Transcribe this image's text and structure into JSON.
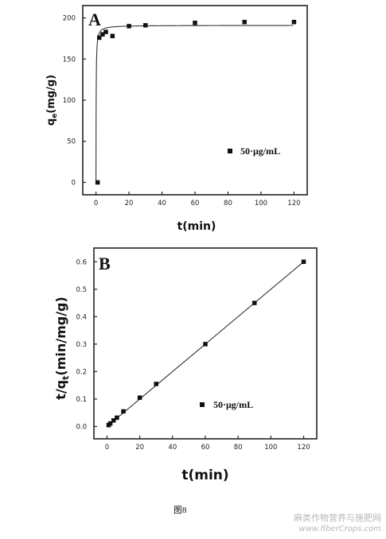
{
  "caption": "图8",
  "watermark": {
    "line1": "麻类作物营养与施肥网",
    "line2": "www.fiberCrops.com"
  },
  "chart_data": [
    {
      "type": "scatter",
      "panel": "A",
      "xlabel": "t(min)",
      "ylabel": "qe(mg/g)",
      "ylabel_main": "q",
      "ylabel_sub": "e",
      "ylabel_rest": "(mg/g)",
      "xlim": [
        -8,
        128
      ],
      "ylim": [
        -15,
        215
      ],
      "xticks": [
        0,
        20,
        40,
        60,
        80,
        100,
        120
      ],
      "yticks": [
        0,
        50,
        100,
        150,
        200
      ],
      "legend": "50·μg/mL",
      "legend_position": "lower-right",
      "series": [
        {
          "name": "50·μg/mL",
          "x": [
            1,
            2,
            4,
            6,
            10,
            20,
            30,
            60,
            90,
            120
          ],
          "y": [
            0,
            176,
            180,
            183,
            178,
            190,
            191,
            194,
            195,
            195
          ]
        }
      ],
      "fit": {
        "type": "pseudo-second-order curve",
        "qe": 191,
        "k": 0.05
      }
    },
    {
      "type": "scatter",
      "panel": "B",
      "xlabel": "t(min)",
      "ylabel": "t/qt(min/mg/g)",
      "ylabel_pre": "t/q",
      "ylabel_sub": "t",
      "ylabel_rest": "(min/mg/g)",
      "xlim": [
        -8,
        128
      ],
      "ylim": [
        -0.045,
        0.65
      ],
      "xticks": [
        0,
        20,
        40,
        60,
        80,
        100,
        120
      ],
      "yticks": [
        0.0,
        0.1,
        0.2,
        0.3,
        0.4,
        0.5,
        0.6
      ],
      "legend": "50·μg/mL",
      "legend_position": "lower-right",
      "series": [
        {
          "name": "50·μg/mL",
          "x": [
            1,
            2,
            4,
            6,
            10,
            20,
            30,
            60,
            90,
            120
          ],
          "y": [
            0.005,
            0.011,
            0.022,
            0.032,
            0.055,
            0.105,
            0.155,
            0.3,
            0.45,
            0.6
          ]
        }
      ],
      "fit": {
        "type": "linear",
        "x": [
          1,
          120
        ],
        "y": [
          0.005,
          0.6
        ]
      }
    }
  ]
}
